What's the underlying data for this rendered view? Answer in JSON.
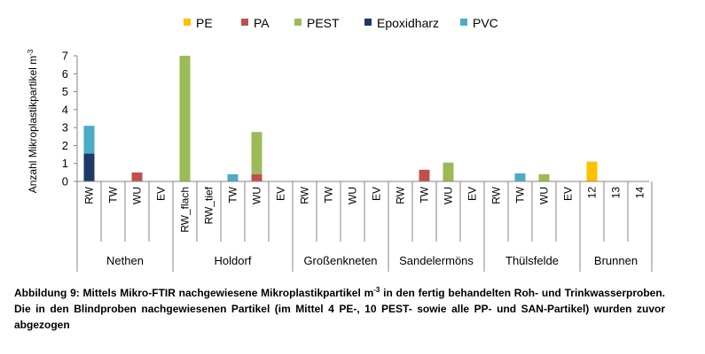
{
  "chart_data": {
    "type": "bar",
    "stacked": true,
    "ylabel": "Anzahl Mikroplastikpartikel m",
    "ylabel_sup": "-3",
    "ylim": [
      0,
      7
    ],
    "yticks": [
      "0",
      "1",
      "2",
      "3",
      "4",
      "5",
      "6",
      "7"
    ],
    "grid": false,
    "legend_position": "top",
    "series": [
      {
        "name": "PE",
        "color": "#FFC000"
      },
      {
        "name": "PA",
        "color": "#C0504D"
      },
      {
        "name": "PEST",
        "color": "#9BBB59"
      },
      {
        "name": "Epoxidharz",
        "color": "#1F3864"
      },
      {
        "name": "PVC",
        "color": "#4BACC6"
      }
    ],
    "groups": [
      {
        "name": "Nethen",
        "categories": [
          {
            "label": "RW",
            "values": {
              "PE": 0,
              "PA": 0,
              "PEST": 0,
              "Epoxidharz": 1.55,
              "PVC": 1.55
            }
          },
          {
            "label": "TW",
            "values": {}
          },
          {
            "label": "WU",
            "values": {
              "PA": 0.5
            }
          },
          {
            "label": "EV",
            "values": {}
          }
        ]
      },
      {
        "name": "Holdorf",
        "categories": [
          {
            "label": "RW_flach",
            "values": {
              "PEST": 7.0
            }
          },
          {
            "label": "RW_tief",
            "values": {}
          },
          {
            "label": "TW",
            "values": {
              "PVC": 0.4
            }
          },
          {
            "label": "WU",
            "values": {
              "PA": 0.4,
              "PEST": 2.35
            }
          },
          {
            "label": "EV",
            "values": {}
          }
        ]
      },
      {
        "name": "Großenkneten",
        "categories": [
          {
            "label": "RW",
            "values": {}
          },
          {
            "label": "TW",
            "values": {}
          },
          {
            "label": "WU",
            "values": {}
          },
          {
            "label": "EV",
            "values": {}
          }
        ]
      },
      {
        "name": "Sandelermöns",
        "categories": [
          {
            "label": "RW",
            "values": {}
          },
          {
            "label": "TW",
            "values": {
              "PA": 0.65
            }
          },
          {
            "label": "WU",
            "values": {
              "PEST": 1.05
            }
          },
          {
            "label": "EV",
            "values": {}
          }
        ]
      },
      {
        "name": "Thülsfelde",
        "categories": [
          {
            "label": "RW",
            "values": {}
          },
          {
            "label": "TW",
            "values": {
              "PVC": 0.45
            }
          },
          {
            "label": "WU",
            "values": {
              "PEST": 0.4
            }
          },
          {
            "label": "EV",
            "values": {}
          }
        ]
      },
      {
        "name": "Brunnen",
        "categories": [
          {
            "label": "12",
            "values": {
              "PE": 1.1
            }
          },
          {
            "label": "13",
            "values": {}
          },
          {
            "label": "14",
            "values": {}
          }
        ]
      }
    ]
  },
  "caption": {
    "part1": "Abbildung 9: Mittels Mikro-FTIR nachgewiesene Mikroplastikpartikel m",
    "sup": "-3",
    "part2": " in den fertig behandelten Roh- und Trinkwasserproben. Die in den Blindproben nachgewiesenen Partikel (im Mittel 4 PE-, 10 PEST- sowie alle PP- und SAN-Partikel) wurden zuvor abgezogen"
  }
}
